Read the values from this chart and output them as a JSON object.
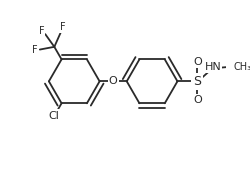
{
  "bg_color": "#ffffff",
  "bond_color": "#2a2a2a",
  "bond_width": 1.3,
  "font_size": 8,
  "fig_width": 2.5,
  "fig_height": 1.69,
  "dpi": 100,
  "xlim": [
    0,
    250
  ],
  "ylim": [
    0,
    169
  ]
}
